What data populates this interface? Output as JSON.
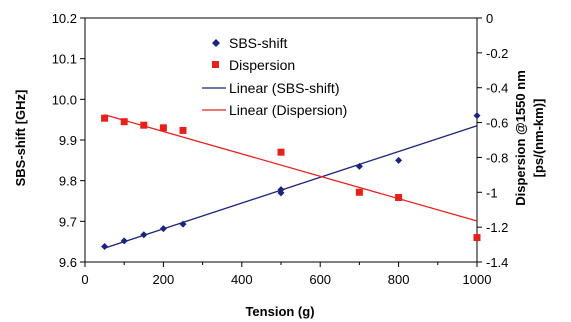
{
  "chart_data": {
    "type": "scatter",
    "xlabel": "Tension (g)",
    "ylabel_left": "SBS-shift [GHz]",
    "ylabel_right": "Dispersion @1550 nm [ps/(nm-km)]",
    "ylabel_right_lines": [
      "Dispersion @1550 nm",
      "[ps/(nm-km)]"
    ],
    "xlim": [
      0,
      1000
    ],
    "ylim_left": [
      9.6,
      10.2
    ],
    "ylim_right": [
      -1.4,
      0
    ],
    "x_ticks": [
      "0",
      "200",
      "400",
      "600",
      "800",
      "1000"
    ],
    "y_left_ticks": [
      "9.6",
      "9.7",
      "9.8",
      "9.9",
      "10.0",
      "10.1",
      "10.2"
    ],
    "y_right_ticks": [
      "-1.4",
      "-1.2",
      "-1",
      "-0.8",
      "-0.6",
      "-0.4",
      "-0.2",
      "0"
    ],
    "grid": false,
    "legend_position": "top-center",
    "series": [
      {
        "name": "SBS-shift",
        "axis": "left",
        "marker": "diamond",
        "color": "#1a237e",
        "points": [
          [
            50,
            9.638
          ],
          [
            100,
            9.652
          ],
          [
            150,
            9.667
          ],
          [
            200,
            9.682
          ],
          [
            250,
            9.693
          ],
          [
            500,
            9.77
          ],
          [
            500,
            9.778
          ],
          [
            700,
            9.835
          ],
          [
            800,
            9.85
          ],
          [
            1000,
            9.96
          ]
        ]
      },
      {
        "name": "Dispersion",
        "axis": "right",
        "marker": "square",
        "color": "#e8201c",
        "points": [
          [
            50,
            -0.575
          ],
          [
            100,
            -0.595
          ],
          [
            150,
            -0.615
          ],
          [
            200,
            -0.63
          ],
          [
            250,
            -0.645
          ],
          [
            500,
            -0.77
          ],
          [
            700,
            -1.0
          ],
          [
            800,
            -1.03
          ],
          [
            1000,
            -1.26
          ]
        ]
      },
      {
        "name": "Linear (SBS-shift)",
        "axis": "left",
        "type": "line",
        "color": "#1a237e",
        "points": [
          [
            50,
            9.634
          ],
          [
            1000,
            9.935
          ]
        ]
      },
      {
        "name": "Linear (Dispersion)",
        "axis": "right",
        "type": "line",
        "color": "#e8201c",
        "points": [
          [
            50,
            -0.555
          ],
          [
            1000,
            -1.165
          ]
        ]
      }
    ]
  }
}
